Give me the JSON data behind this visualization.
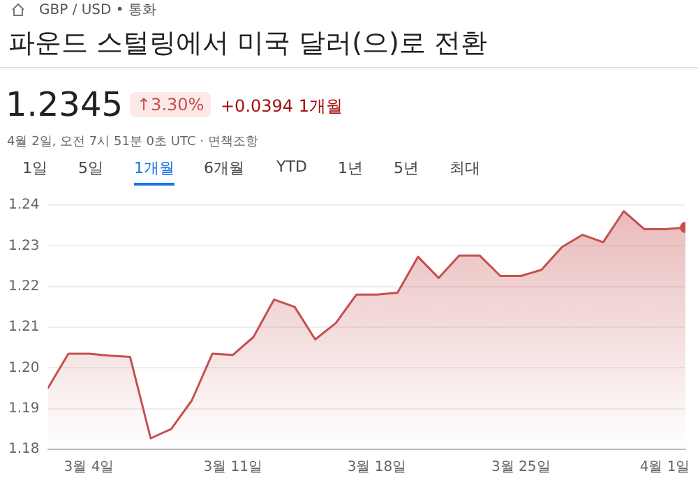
{
  "chart_data": {
    "type": "area",
    "title": "파운드 스털링에서 미국 달러(으)로 전환",
    "annotations": [
      "GBP / USD • 통화",
      "1.2345",
      "↑3.30%",
      "+0.0394 1개월",
      "4월 2일, 오전 7시 51분 0초 UTC · 면책조항",
      "1일",
      "5일",
      "1개월",
      "6개월",
      "YTD",
      "1년",
      "5년",
      "최대"
    ],
    "x": [
      "--03-02",
      "--03-03",
      "--03-04",
      "--03-05",
      "--03-06",
      "--03-07",
      "--03-08",
      "--03-09",
      "--03-10",
      "--03-11",
      "--03-12",
      "--03-13",
      "--03-14",
      "--03-15",
      "--03-16",
      "--03-17",
      "--03-18",
      "--03-19",
      "--03-20",
      "--03-21",
      "--03-22",
      "--03-23",
      "--03-24",
      "--03-25",
      "--03-26",
      "--03-27",
      "--03-28",
      "--03-29",
      "--03-30",
      "--03-31",
      "--04-01",
      "--04-02"
    ],
    "series": [
      {
        "color": "#c5504f",
        "values": [
          1.195,
          1.2035,
          1.2035,
          1.203,
          1.2027,
          1.1827,
          1.185,
          1.192,
          1.2035,
          1.2032,
          1.2076,
          1.2168,
          1.215,
          1.207,
          1.211,
          1.218,
          1.218,
          1.2185,
          1.2273,
          1.2221,
          1.2276,
          1.2276,
          1.2226,
          1.2226,
          1.2241,
          1.2297,
          1.2327,
          1.2309,
          1.2385,
          1.2341,
          1.2341,
          1.2345
        ]
      }
    ],
    "xlim": [
      "--03-02",
      "--04-02"
    ],
    "xticks": [
      {
        "value": "--03-04",
        "label": "3월 4일"
      },
      {
        "value": "--03-11",
        "label": "3월 11일"
      },
      {
        "value": "--03-18",
        "label": "3월 18일"
      },
      {
        "value": "--03-25",
        "label": "3월 25일"
      },
      {
        "value": "--04-01",
        "label": "4월 1일"
      }
    ],
    "ylim": [
      1.18,
      1.24
    ],
    "yticks": [
      1.18,
      1.19,
      {
        "value": 1.2,
        "label": "1.20"
      },
      1.21,
      1.22,
      1.23,
      1.24
    ],
    "grid": "y",
    "legend": false
  }
}
